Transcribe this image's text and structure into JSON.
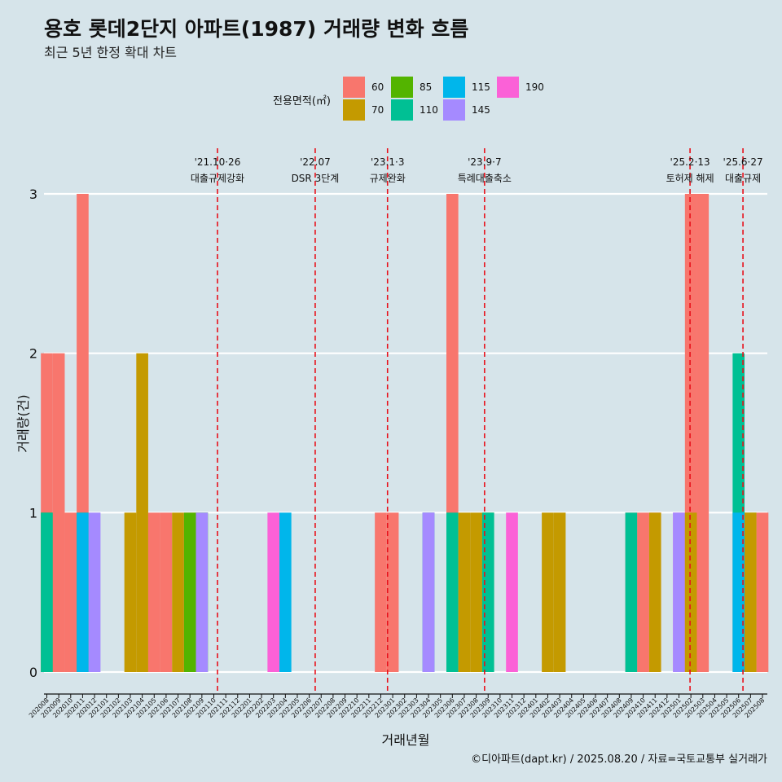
{
  "title": "용호 롯데2단지 아파트(1987) 거래량 변화 흐름",
  "subtitle": "최근 5년 한정 확대 차트",
  "caption": "©디아파트(dapt.kr) / 2025.08.20 / 자료=국토교통부 실거래가",
  "colors": {
    "background": "#d6e4ea",
    "grid": "#ffffff",
    "policy_line": "#e8101a"
  },
  "chart_data": {
    "type": "bar",
    "xlabel": "거래년월",
    "ylabel": "거래량(건)",
    "ylim": [
      0,
      3
    ],
    "yticks": [
      0,
      1,
      2,
      3
    ],
    "legend": {
      "title": "전용면적(㎡)",
      "placement": "top",
      "entries": [
        {
          "label": "60",
          "color": "#f8766d"
        },
        {
          "label": "70",
          "color": "#c49a00"
        },
        {
          "label": "85",
          "color": "#53b400"
        },
        {
          "label": "110",
          "color": "#00c094"
        },
        {
          "label": "115",
          "color": "#00b6eb"
        },
        {
          "label": "145",
          "color": "#a58aff"
        },
        {
          "label": "190",
          "color": "#fb61d7"
        }
      ]
    },
    "months": [
      "202008",
      "202009",
      "202010",
      "202011",
      "202012",
      "202101",
      "202102",
      "202103",
      "202104",
      "202105",
      "202106",
      "202107",
      "202108",
      "202109",
      "202110",
      "202111",
      "202112",
      "202201",
      "202202",
      "202203",
      "202204",
      "202205",
      "202206",
      "202207",
      "202208",
      "202209",
      "202210",
      "202211",
      "202212",
      "202301",
      "202302",
      "202303",
      "202304",
      "202305",
      "202306",
      "202307",
      "202308",
      "202309",
      "202310",
      "202311",
      "202312",
      "202401",
      "202402",
      "202403",
      "202404",
      "202405",
      "202406",
      "202407",
      "202408",
      "202409",
      "202410",
      "202411",
      "202412",
      "202501",
      "202502",
      "202503",
      "202504",
      "202505",
      "202506",
      "202507",
      "202508"
    ],
    "bars": [
      {
        "month": "202008",
        "area": "60",
        "value": 2
      },
      {
        "month": "202008",
        "area": "85",
        "value": 1
      },
      {
        "month": "202008",
        "area": "110",
        "value": 1
      },
      {
        "month": "202009",
        "area": "60",
        "value": 2
      },
      {
        "month": "202010",
        "area": "60",
        "value": 1
      },
      {
        "month": "202011",
        "area": "60",
        "value": 3
      },
      {
        "month": "202011",
        "area": "85",
        "value": 1
      },
      {
        "month": "202011",
        "area": "115",
        "value": 1
      },
      {
        "month": "202012",
        "area": "145",
        "value": 1
      },
      {
        "month": "202103",
        "area": "70",
        "value": 1
      },
      {
        "month": "202104",
        "area": "70",
        "value": 2
      },
      {
        "month": "202105",
        "area": "60",
        "value": 1
      },
      {
        "month": "202106",
        "area": "60",
        "value": 1
      },
      {
        "month": "202107",
        "area": "70",
        "value": 1
      },
      {
        "month": "202108",
        "area": "60",
        "value": 1
      },
      {
        "month": "202108",
        "area": "85",
        "value": 1
      },
      {
        "month": "202109",
        "area": "110",
        "value": 1
      },
      {
        "month": "202109",
        "area": "85",
        "value": 1
      },
      {
        "month": "202109",
        "area": "145",
        "value": 1
      },
      {
        "month": "202203",
        "area": "190",
        "value": 1
      },
      {
        "month": "202204",
        "area": "115",
        "value": 1
      },
      {
        "month": "202212",
        "area": "60",
        "value": 1
      },
      {
        "month": "202301",
        "area": "60",
        "value": 1
      },
      {
        "month": "202304",
        "area": "60",
        "value": 1
      },
      {
        "month": "202304",
        "area": "115",
        "value": 1
      },
      {
        "month": "202304",
        "area": "145",
        "value": 1
      },
      {
        "month": "202306",
        "area": "60",
        "value": 3
      },
      {
        "month": "202306",
        "area": "110",
        "value": 1
      },
      {
        "month": "202307",
        "area": "70",
        "value": 1
      },
      {
        "month": "202308",
        "area": "70",
        "value": 1
      },
      {
        "month": "202309",
        "area": "85",
        "value": 1
      },
      {
        "month": "202309",
        "area": "110",
        "value": 1
      },
      {
        "month": "202311",
        "area": "190",
        "value": 1
      },
      {
        "month": "202402",
        "area": "70",
        "value": 1
      },
      {
        "month": "202403",
        "area": "70",
        "value": 1
      },
      {
        "month": "202409",
        "area": "60",
        "value": 1
      },
      {
        "month": "202409",
        "area": "110",
        "value": 1
      },
      {
        "month": "202410",
        "area": "60",
        "value": 1
      },
      {
        "month": "202411",
        "area": "60",
        "value": 1
      },
      {
        "month": "202411",
        "area": "70",
        "value": 1
      },
      {
        "month": "202501",
        "area": "190",
        "value": 1
      },
      {
        "month": "202501",
        "area": "145",
        "value": 1
      },
      {
        "month": "202502",
        "area": "60",
        "value": 3
      },
      {
        "month": "202502",
        "area": "70",
        "value": 1
      },
      {
        "month": "202503",
        "area": "60",
        "value": 3
      },
      {
        "month": "202506",
        "area": "60",
        "value": 1
      },
      {
        "month": "202506",
        "area": "110",
        "value": 2
      },
      {
        "month": "202506",
        "area": "115",
        "value": 1
      },
      {
        "month": "202507",
        "area": "85",
        "value": 1
      },
      {
        "month": "202507",
        "area": "70",
        "value": 1
      },
      {
        "month": "202508",
        "area": "60",
        "value": 1
      }
    ],
    "policy_lines": [
      {
        "date": "2021-10-26",
        "label_top": "'21.10·26",
        "label_bottom": "대출규제강화"
      },
      {
        "date": "2022-07-01",
        "label_top": "'22.07",
        "label_bottom": "DSR 3단계"
      },
      {
        "date": "2023-01-03",
        "label_top": "'23.1·3",
        "label_bottom": "규제완화"
      },
      {
        "date": "2023-09-07",
        "label_top": "'23.9·7",
        "label_bottom": "특례대출축소"
      },
      {
        "date": "2025-02-13",
        "label_top": "'25.2·13",
        "label_bottom": "토허제 해제"
      },
      {
        "date": "2025-06-27",
        "label_top": "'25.6·27",
        "label_bottom": "대출규제"
      }
    ]
  }
}
